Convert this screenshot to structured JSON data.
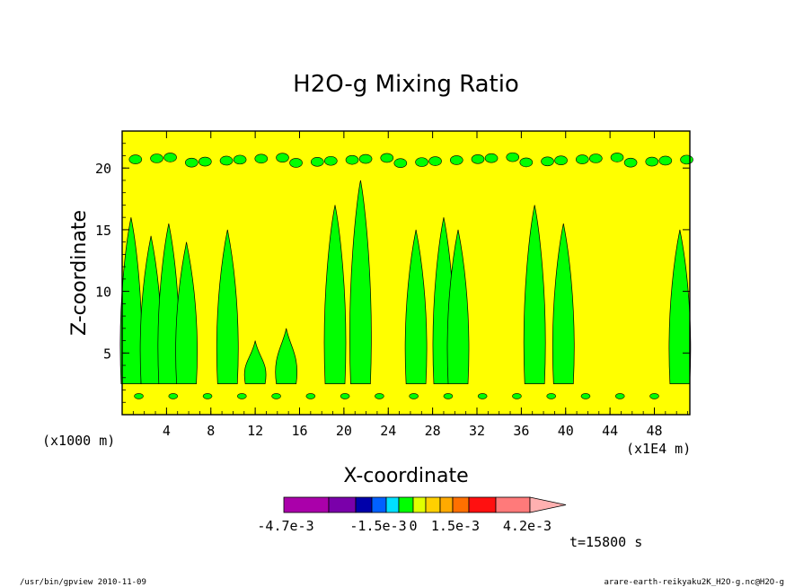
{
  "footer": {
    "left": "/usr/bin/gpview   2010-11-09",
    "right": "arare-earth-reikyaku2K_H2O-g.nc@H2O-g"
  },
  "time_label": "t=15800 s",
  "chart_data": {
    "type": "heatmap",
    "title": "H2O-g Mixing Ratio",
    "xlabel": "X-coordinate",
    "ylabel": "Z-coordinate",
    "x_unit_left": "(x1000 m)",
    "x_unit_right": "(x1E4 m)",
    "xlim": [
      0,
      51.2
    ],
    "ylim": [
      0,
      23
    ],
    "x_ticks": [
      4,
      8,
      12,
      16,
      20,
      24,
      28,
      32,
      36,
      40,
      44,
      48
    ],
    "y_ticks": [
      5,
      10,
      15,
      20
    ],
    "grid": false,
    "background_value_color": "#ffff00",
    "colorbar": {
      "colors": [
        "#aa00aa",
        "#7a00aa",
        "#0000aa",
        "#0060ff",
        "#00e0ff",
        "#00ff00",
        "#e0ff00",
        "#ffd000",
        "#ffaa00",
        "#ff7000",
        "#ff1010",
        "#ff7a7a",
        "#ffb0b0"
      ],
      "labels": [
        "-4.7e-3",
        "-1.5e-3",
        "0",
        "1.5e-3",
        "4.2e-3"
      ],
      "extend": "max"
    },
    "plumes": [
      {
        "x": 0.8,
        "top": 16.0
      },
      {
        "x": 2.6,
        "top": 14.5
      },
      {
        "x": 4.2,
        "top": 15.5
      },
      {
        "x": 5.8,
        "top": 14.0
      },
      {
        "x": 9.5,
        "top": 15.0
      },
      {
        "x": 12.0,
        "top": 6.0
      },
      {
        "x": 14.8,
        "top": 7.0
      },
      {
        "x": 19.2,
        "top": 17.0
      },
      {
        "x": 21.5,
        "top": 19.0
      },
      {
        "x": 26.5,
        "top": 15.0
      },
      {
        "x": 29.0,
        "top": 16.0
      },
      {
        "x": 30.3,
        "top": 15.0
      },
      {
        "x": 37.2,
        "top": 17.0
      },
      {
        "x": 39.8,
        "top": 15.5
      },
      {
        "x": 50.3,
        "top": 15.0
      }
    ]
  }
}
